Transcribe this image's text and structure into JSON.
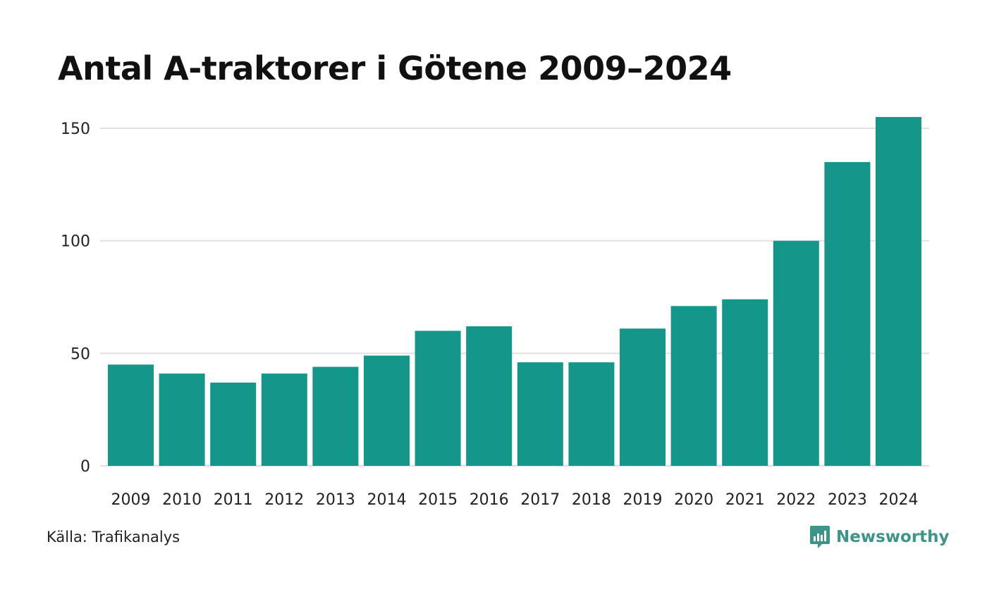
{
  "chart_data": {
    "type": "bar",
    "title": "Antal A-traktorer i Götene 2009–2024",
    "xlabel": "",
    "ylabel": "",
    "categories": [
      "2009",
      "2010",
      "2011",
      "2012",
      "2013",
      "2014",
      "2015",
      "2016",
      "2017",
      "2018",
      "2019",
      "2020",
      "2021",
      "2022",
      "2023",
      "2024"
    ],
    "values": [
      45,
      41,
      37,
      41,
      44,
      49,
      60,
      62,
      46,
      46,
      61,
      71,
      74,
      100,
      135,
      155
    ],
    "ylim": [
      0,
      150
    ],
    "yticks": [
      0,
      50,
      100,
      150
    ],
    "grid": true,
    "legend": "none",
    "bar_color": "#14968a",
    "grid_color": "#e0e0e0"
  },
  "footer": {
    "source": "Källa: Trafikanalys",
    "brand": "Newsworthy",
    "brand_color": "#3d9488",
    "brand_icon": "newsworthy-logo-icon"
  }
}
